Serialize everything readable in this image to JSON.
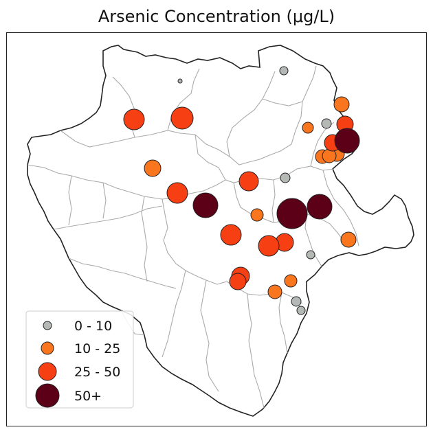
{
  "title": "Arsenic Concentration (μg/L)",
  "colors": {
    "0-10": "#b4b9b6",
    "10-25": "#f9761f",
    "25-50": "#f73f14",
    "50+": "#5c0018",
    "outline": "#222222",
    "district_lines": "#aaaaaa"
  },
  "legend": {
    "placement": "lower-left",
    "entries": [
      {
        "label": "0 - 10",
        "class": "0-10"
      },
      {
        "label": "10 - 25",
        "class": "10-25"
      },
      {
        "label": "25 - 50",
        "class": "25-50"
      },
      {
        "label": "50+",
        "class": "50+"
      }
    ]
  },
  "chart_data": {
    "type": "scatter",
    "title": "Arsenic Concentration (μg/L)",
    "categories": [
      "0 - 10",
      "10 - 25",
      "25 - 50",
      "50+"
    ],
    "samples": {
      "0-10": 7,
      "10-25": 10,
      "25-50": 13,
      "50+": 4
    }
  }
}
